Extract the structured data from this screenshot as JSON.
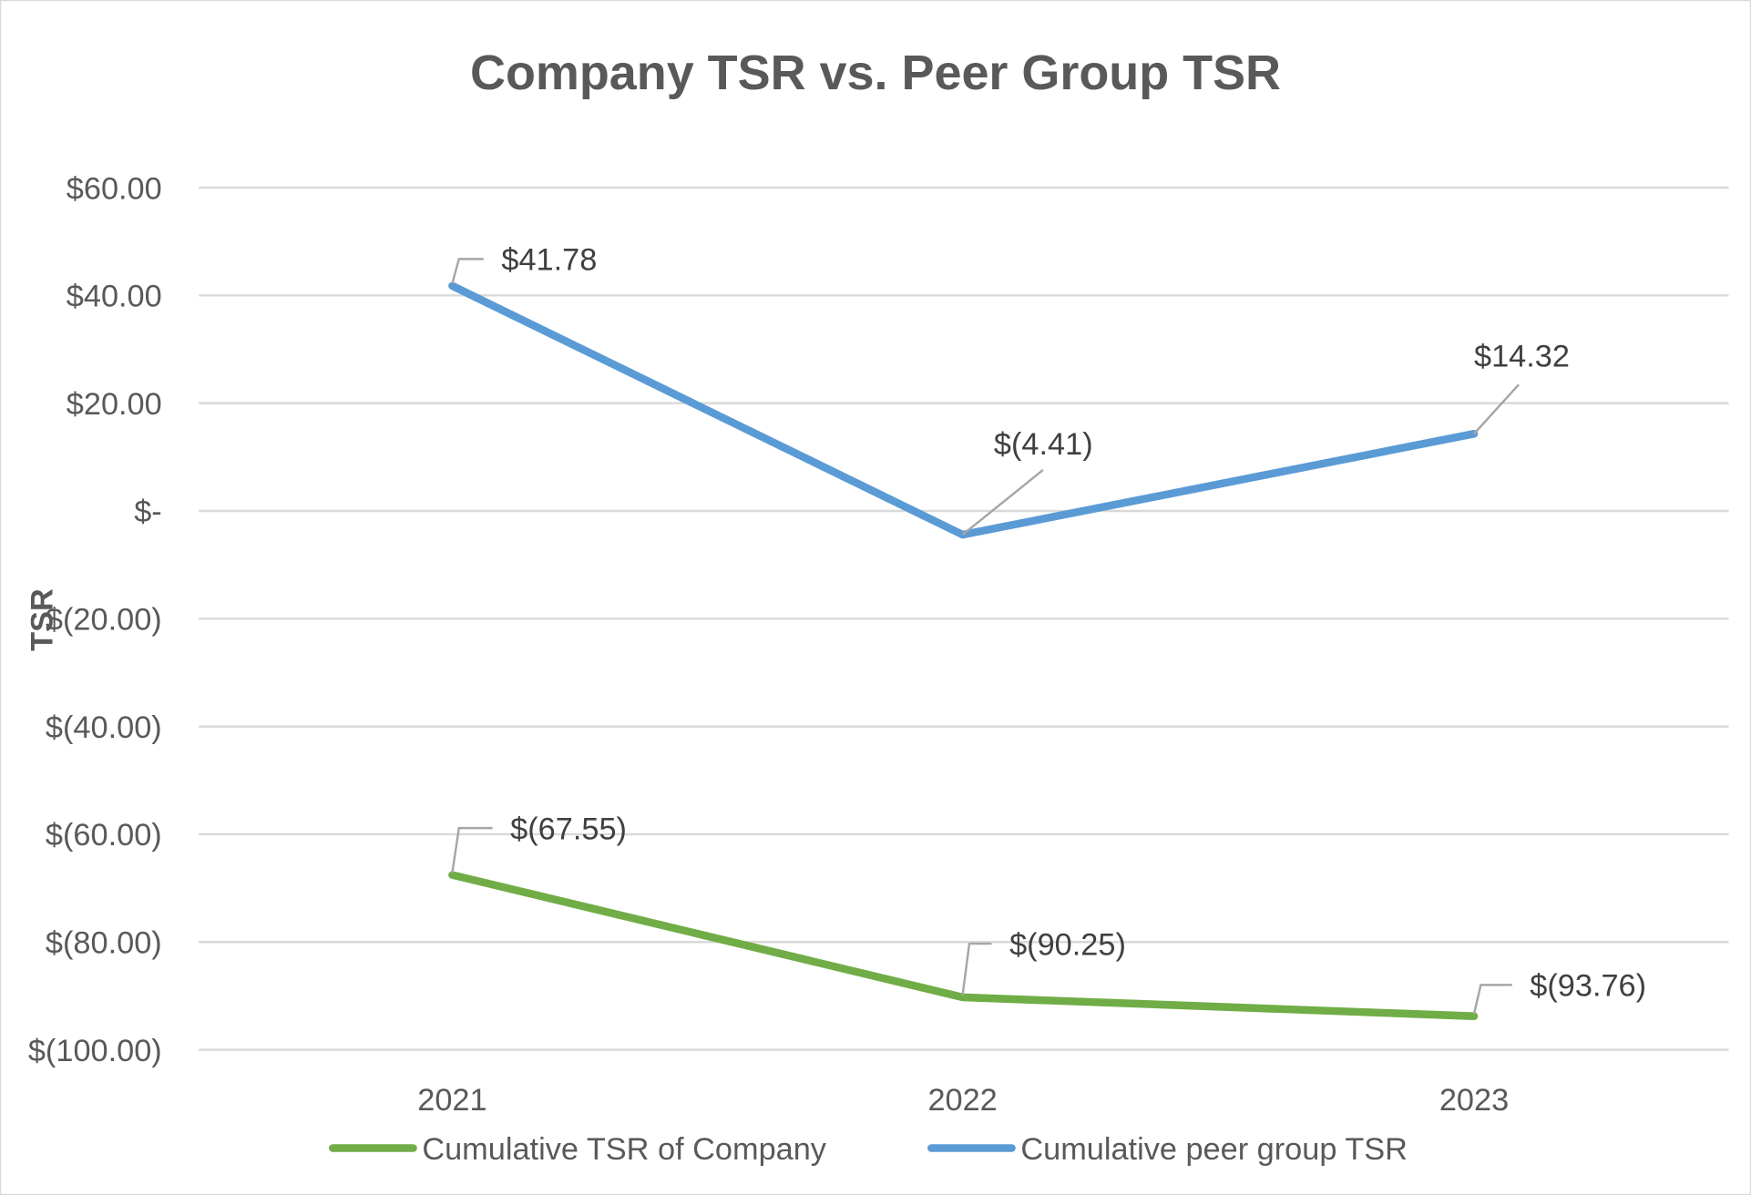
{
  "chart_data": {
    "type": "line",
    "title": "Company TSR vs. Peer Group TSR",
    "xlabel": "",
    "ylabel": "TSR",
    "categories": [
      "2021",
      "2022",
      "2023"
    ],
    "ylim": [
      -100,
      60
    ],
    "yticks": [
      60,
      40,
      20,
      0,
      -20,
      -40,
      -60,
      -80,
      -100
    ],
    "ytick_labels": [
      "$60.00",
      "$40.00",
      "$20.00",
      "$-",
      "$(20.00)",
      "$(40.00)",
      "$(60.00)",
      "$(80.00)",
      "$(100.00)"
    ],
    "grid": true,
    "legend_position": "bottom",
    "series": [
      {
        "name": "Cumulative TSR of Company",
        "color": "#70AD47",
        "values": [
          -67.55,
          -90.25,
          -93.76
        ],
        "labels": [
          "$(67.55)",
          "$(90.25)",
          "$(93.76)"
        ]
      },
      {
        "name": "Cumulative peer group TSR",
        "color": "#5B9BD5",
        "values": [
          41.78,
          -4.41,
          14.32
        ],
        "labels": [
          "$41.78",
          "$(4.41)",
          "$14.32"
        ]
      }
    ]
  }
}
